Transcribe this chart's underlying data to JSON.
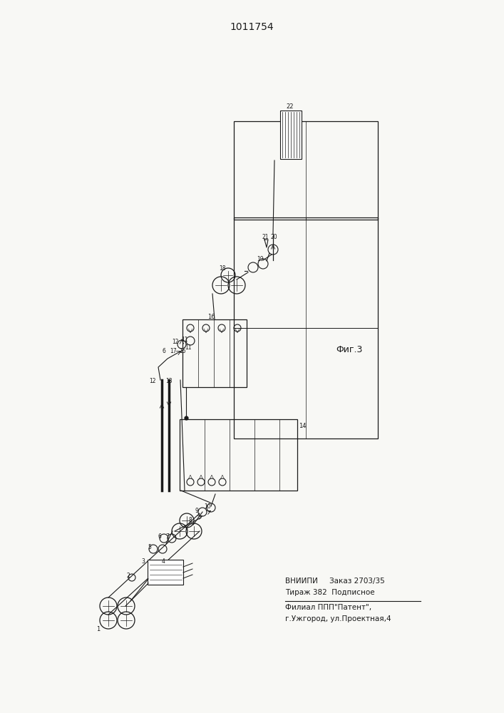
{
  "patent_number": "1011754",
  "fig_label": "Фиг.3",
  "bottom_text_line1": "ВНИИПИ     Заказ 2703/35",
  "bottom_text_line2": "Тираж 382  Подписное",
  "bottom_text_line4": "Филиал ППП\"Патент\",",
  "bottom_text_line5": "г.Ужгород, ул.Проектная,4",
  "bg_color": "#f8f8f5",
  "line_color": "#1a1a1a",
  "text_color": "#1a1a1a"
}
